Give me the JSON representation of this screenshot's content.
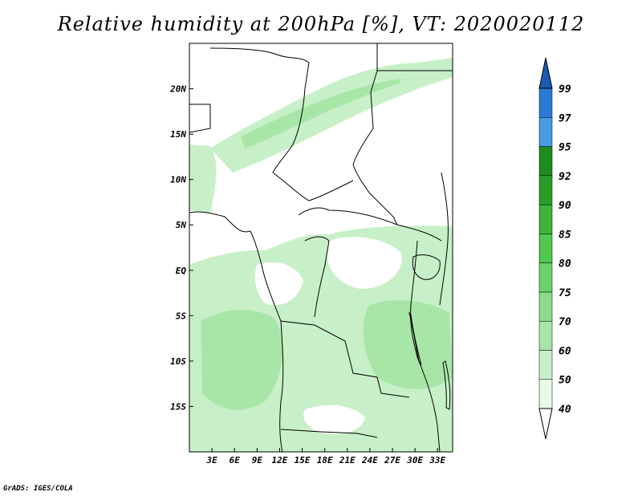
{
  "title": "Relative humidity at 200hPa [%], VT: 2020020112",
  "credit": "GrADS: IGES/COLA",
  "map": {
    "lon_range": [
      0,
      35
    ],
    "lat_range": [
      -20,
      25
    ],
    "lon_ticks": [
      {
        "value": 3,
        "label": "3E"
      },
      {
        "value": 6,
        "label": "6E"
      },
      {
        "value": 9,
        "label": "9E"
      },
      {
        "value": 12,
        "label": "12E"
      },
      {
        "value": 15,
        "label": "15E"
      },
      {
        "value": 18,
        "label": "18E"
      },
      {
        "value": 21,
        "label": "21E"
      },
      {
        "value": 24,
        "label": "24E"
      },
      {
        "value": 27,
        "label": "27E"
      },
      {
        "value": 30,
        "label": "30E"
      },
      {
        "value": 33,
        "label": "33E"
      }
    ],
    "lat_ticks": [
      {
        "value": 20,
        "label": "20N"
      },
      {
        "value": 15,
        "label": "15N"
      },
      {
        "value": 10,
        "label": "10N"
      },
      {
        "value": 5,
        "label": "5N"
      },
      {
        "value": 0,
        "label": "EQ"
      },
      {
        "value": -5,
        "label": "5S"
      },
      {
        "value": -10,
        "label": "10S"
      },
      {
        "value": -15,
        "label": "15S"
      }
    ]
  },
  "colorbar": {
    "levels": [
      "40",
      "50",
      "60",
      "70",
      "75",
      "80",
      "85",
      "90",
      "92",
      "95",
      "97",
      "99"
    ],
    "colors": [
      "#e6fae6",
      "#c8f0c8",
      "#a8e6a8",
      "#8cdc8c",
      "#6cd26c",
      "#50c850",
      "#3cb43c",
      "#28a028",
      "#1e8c1e",
      "#4a9ae6",
      "#2a7ad6",
      "#1e5ab4"
    ],
    "top_color": "#1e5ab4",
    "bottom_color": "#ffffff"
  }
}
